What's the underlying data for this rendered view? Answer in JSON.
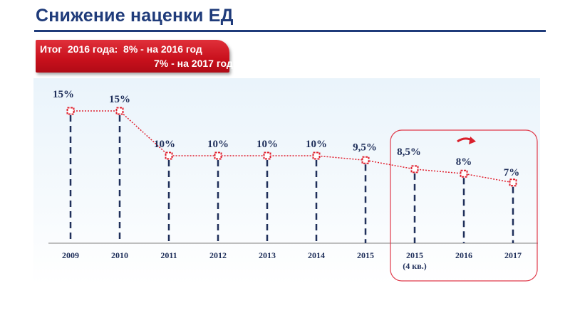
{
  "slide": {
    "title": "Снижение наценки ЕД",
    "badge": {
      "line1": "Итог  2016 года:  8% - на 2016 год",
      "line2": "7% - на 2017 год"
    }
  },
  "chart_data": {
    "type": "line",
    "categories": [
      "2009",
      "2010",
      "2011",
      "2012",
      "2013",
      "2014",
      "2015",
      "2015\n(4 кв.)",
      "2016",
      "2017"
    ],
    "values": [
      15,
      15,
      10,
      10,
      10,
      10,
      9.5,
      8.5,
      8,
      7
    ],
    "data_labels": [
      "15%",
      "15%",
      "10%",
      "10%",
      "10%",
      "10%",
      "9,5%",
      "8,5%",
      "8%",
      "7%"
    ],
    "tick_labels": [
      [
        "2009"
      ],
      [
        "2010"
      ],
      [
        "2011"
      ],
      [
        "2012"
      ],
      [
        "2013"
      ],
      [
        "2014"
      ],
      [
        "2015"
      ],
      [
        "2015",
        "(4 кв.)"
      ],
      [
        "2016"
      ],
      [
        "2017"
      ]
    ],
    "ylim": [
      0,
      16
    ],
    "grid": false,
    "highlight": {
      "from_category_index": 7,
      "to_category_index": 9,
      "color": "#e03a4a"
    },
    "colors": {
      "line": "#e0202e",
      "marker": "#e0202e",
      "drop_line": "#1f2f5a",
      "text": "#1f2f5a",
      "axis": "#7f7f7f"
    }
  }
}
